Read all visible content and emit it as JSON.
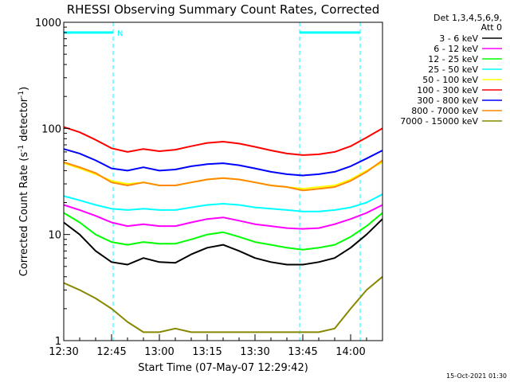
{
  "chart_data": {
    "type": "line",
    "title": "RHESSI Observing Summary Count Rates, Corrected",
    "xlabel": "Start Time (07-May-07 12:29:42)",
    "ylabel": "Corrected Count Rate (s-1 detector-1)",
    "ylabel_parts": {
      "pre": "Corrected Count Rate (s",
      "exp1": "-1",
      "mid": " detector",
      "exp2": "-1",
      "post": ")"
    },
    "yscale": "log",
    "ylim": [
      1,
      1000
    ],
    "xlim_minutes": [
      0,
      100
    ],
    "x_ticks": [
      {
        "label": "12:30",
        "minute": 0
      },
      {
        "label": "12:45",
        "minute": 15
      },
      {
        "label": "13:00",
        "minute": 30
      },
      {
        "label": "13:15",
        "minute": 45
      },
      {
        "label": "13:30",
        "minute": 60
      },
      {
        "label": "13:45",
        "minute": 75
      },
      {
        "label": "14:00",
        "minute": 90
      }
    ],
    "y_ticks": [
      {
        "label": "1",
        "value": 1
      },
      {
        "label": "10",
        "value": 10
      },
      {
        "label": "100",
        "value": 100
      },
      {
        "label": "1000",
        "value": 1000
      }
    ],
    "legend_header": [
      "Det 1,3,4,5,6,9,",
      "Att 0"
    ],
    "legend_placement": "right",
    "footer_timestamp": "15-Oct-2021 01:30",
    "background": "#ffffff",
    "axis_color": "#000000",
    "night_markers": {
      "color": "#00ffff",
      "label": "N",
      "boundaries_minutes": [
        0,
        15.5,
        74,
        93
      ],
      "bars": [
        {
          "start": 0,
          "end": 15.5
        },
        {
          "start": 74,
          "end": 93
        }
      ],
      "bar_level": 800
    },
    "time_minutes": [
      0,
      5,
      10,
      15,
      20,
      25,
      30,
      35,
      40,
      45,
      50,
      55,
      60,
      65,
      70,
      75,
      80,
      85,
      90,
      95,
      100
    ],
    "series": [
      {
        "name": "3 - 6 keV",
        "color": "#000000",
        "values": [
          13,
          10,
          7,
          5.5,
          5.2,
          6,
          5.5,
          5.4,
          6.5,
          7.5,
          8,
          7,
          6,
          5.5,
          5.2,
          5.2,
          5.5,
          6,
          7.5,
          10,
          14
        ]
      },
      {
        "name": "6 - 12 keV",
        "color": "#ff00ff",
        "values": [
          19,
          17,
          15,
          13,
          12,
          12.5,
          12,
          12,
          13,
          14,
          14.5,
          13.5,
          12.5,
          12,
          11.5,
          11.3,
          11.5,
          12.5,
          14,
          16,
          19
        ]
      },
      {
        "name": "12 - 25 keV",
        "color": "#00ff00",
        "values": [
          16,
          13,
          10,
          8.5,
          8,
          8.5,
          8.2,
          8.2,
          9,
          10,
          10.5,
          9.5,
          8.5,
          8,
          7.5,
          7.2,
          7.5,
          8,
          9.5,
          12,
          16
        ]
      },
      {
        "name": "25 - 50 keV",
        "color": "#00ffff",
        "values": [
          23,
          21,
          19,
          17.5,
          17,
          17.5,
          17,
          17,
          18,
          19,
          19.5,
          19,
          18,
          17.5,
          17,
          16.5,
          16.5,
          17,
          18,
          20,
          24
        ]
      },
      {
        "name": "50 - 100 keV",
        "color": "#ffff00",
        "values": [
          47,
          42,
          37,
          32,
          30,
          31,
          29,
          29,
          31,
          33,
          34,
          33,
          31,
          29,
          28,
          27,
          28,
          29,
          33,
          40,
          48
        ]
      },
      {
        "name": "100 - 300 keV",
        "color": "#ff0000",
        "values": [
          103,
          92,
          78,
          65,
          60,
          64,
          61,
          63,
          68,
          73,
          75,
          72,
          67,
          62,
          58,
          56,
          57,
          60,
          68,
          82,
          100
        ]
      },
      {
        "name": "300 - 800 keV",
        "color": "#0000ff",
        "values": [
          64,
          58,
          50,
          42,
          40,
          43,
          40,
          41,
          44,
          46,
          47,
          45,
          42,
          39,
          37,
          36,
          37,
          39,
          44,
          52,
          62
        ]
      },
      {
        "name": "800 - 7000 keV",
        "color": "#ff8800",
        "values": [
          48,
          43,
          38,
          31,
          29,
          31,
          29,
          29,
          31,
          33,
          34,
          33,
          31,
          29,
          28,
          26,
          27,
          28,
          32,
          39,
          50
        ]
      },
      {
        "name": "7000 - 15000 keV",
        "color": "#888800",
        "values": [
          3.5,
          3,
          2.5,
          2,
          1.5,
          1.2,
          1.2,
          1.3,
          1.2,
          1.2,
          1.2,
          1.2,
          1.2,
          1.2,
          1.2,
          1.2,
          1.2,
          1.3,
          2,
          3,
          4
        ]
      }
    ]
  }
}
